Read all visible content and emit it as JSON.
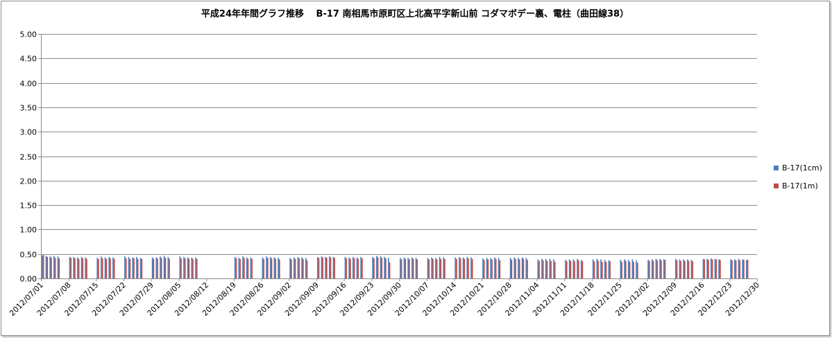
{
  "chart_data": {
    "type": "bar",
    "title": "平成24年年間グラフ推移　 B-17 南相馬市原町区上北高平字新山前 コダマボデー裏、電柱（曲田線38）",
    "ylim": [
      0,
      5
    ],
    "yticks": [
      "0.00",
      "0.50",
      "1.00",
      "1.50",
      "2.00",
      "2.50",
      "3.00",
      "3.50",
      "4.00",
      "4.50",
      "5.00"
    ],
    "xtick_labels": [
      "2012/07/01",
      "2012/07/08",
      "2012/07/15",
      "2012/07/22",
      "2012/07/29",
      "2012/08/05",
      "2012/08/12",
      "2012/08/19",
      "2012/08/26",
      "2012/09/02",
      "2012/09/09",
      "2012/09/16",
      "2012/09/23",
      "2012/09/30",
      "2012/10/07",
      "2012/10/14",
      "2012/10/21",
      "2012/10/28",
      "2012/11/04",
      "2012/11/11",
      "2012/11/18",
      "2012/11/25",
      "2012/12/02",
      "2012/12/09",
      "2012/12/16",
      "2012/12/23",
      "2012/12/30"
    ],
    "grid": true,
    "legend_position": "right",
    "series": [
      {
        "name": "B-17(1cm)",
        "color": "#4a7ebb",
        "values": [
          0.47,
          0.46,
          0.45,
          0.46,
          0.45,
          null,
          null,
          0.44,
          0.44,
          0.43,
          0.44,
          0.43,
          null,
          null,
          0.42,
          0.45,
          0.43,
          0.44,
          0.43,
          null,
          null,
          0.45,
          0.44,
          0.43,
          0.44,
          0.42,
          null,
          null,
          0.43,
          0.43,
          0.45,
          0.46,
          0.44,
          null,
          null,
          0.45,
          0.44,
          0.43,
          0.43,
          0.43,
          null,
          null,
          null,
          null,
          null,
          null,
          null,
          null,
          null,
          0.44,
          0.42,
          0.45,
          0.43,
          0.43,
          null,
          null,
          0.43,
          0.45,
          0.44,
          0.43,
          0.42,
          null,
          null,
          0.42,
          0.43,
          0.44,
          0.43,
          0.42,
          null,
          null,
          0.44,
          0.45,
          0.44,
          0.45,
          0.44,
          null,
          null,
          0.44,
          0.43,
          0.44,
          0.43,
          0.44,
          null,
          null,
          0.44,
          0.46,
          0.45,
          0.44,
          0.42,
          null,
          null,
          0.42,
          0.43,
          0.42,
          0.43,
          0.42,
          null,
          null,
          0.42,
          0.43,
          0.42,
          0.44,
          0.43,
          null,
          null,
          0.43,
          0.44,
          0.43,
          0.44,
          0.43,
          null,
          null,
          0.41,
          0.42,
          0.42,
          0.43,
          0.42,
          null,
          null,
          0.42,
          0.43,
          0.42,
          0.43,
          0.42,
          null,
          null,
          0.39,
          0.4,
          0.4,
          0.4,
          0.39,
          null,
          null,
          0.38,
          0.39,
          0.39,
          0.4,
          0.38,
          null,
          null,
          0.39,
          0.4,
          0.39,
          0.38,
          0.37,
          null,
          null,
          0.38,
          0.39,
          0.38,
          0.39,
          0.37,
          null,
          null,
          0.38,
          0.39,
          0.4,
          0.4,
          0.39,
          null,
          null,
          0.4,
          0.39,
          0.39,
          0.39,
          0.38,
          null,
          null,
          0.4,
          0.4,
          0.41,
          0.4,
          0.39,
          null,
          null,
          0.39,
          0.39,
          0.4,
          0.39,
          0.38,
          null,
          null
        ]
      },
      {
        "name": "B-17(1m)",
        "color": "#be4b48",
        "values": [
          0.48,
          0.44,
          0.43,
          0.42,
          0.41,
          null,
          null,
          0.42,
          0.41,
          0.4,
          0.41,
          0.4,
          null,
          null,
          0.4,
          0.41,
          0.4,
          0.41,
          0.4,
          null,
          null,
          0.41,
          0.4,
          0.41,
          0.4,
          0.4,
          null,
          null,
          0.4,
          0.41,
          0.42,
          0.42,
          0.4,
          null,
          null,
          0.41,
          0.41,
          0.4,
          0.4,
          0.4,
          null,
          null,
          null,
          null,
          null,
          null,
          null,
          null,
          null,
          0.41,
          0.4,
          0.42,
          0.4,
          0.4,
          null,
          null,
          0.4,
          0.42,
          0.41,
          0.4,
          0.39,
          null,
          null,
          0.39,
          0.4,
          0.41,
          0.4,
          0.37,
          null,
          null,
          0.42,
          0.43,
          0.42,
          0.43,
          0.42,
          null,
          null,
          0.41,
          0.4,
          0.41,
          0.4,
          0.41,
          null,
          null,
          0.41,
          0.43,
          0.42,
          0.41,
          0.33,
          null,
          null,
          0.39,
          0.4,
          0.39,
          0.4,
          0.39,
          null,
          null,
          0.39,
          0.4,
          0.39,
          0.4,
          0.4,
          null,
          null,
          0.4,
          0.41,
          0.4,
          0.41,
          0.4,
          null,
          null,
          0.38,
          0.39,
          0.39,
          0.4,
          0.37,
          null,
          null,
          0.38,
          0.4,
          0.39,
          0.4,
          0.38,
          null,
          null,
          0.36,
          0.37,
          0.36,
          0.36,
          0.34,
          null,
          null,
          0.35,
          0.36,
          0.35,
          0.37,
          0.35,
          null,
          null,
          0.35,
          0.36,
          0.34,
          0.34,
          0.35,
          null,
          null,
          0.34,
          0.36,
          0.34,
          0.34,
          0.32,
          null,
          null,
          0.36,
          0.36,
          0.37,
          0.37,
          0.38,
          null,
          null,
          0.37,
          0.36,
          0.36,
          0.36,
          0.35,
          null,
          null,
          0.39,
          0.38,
          0.39,
          0.39,
          0.38,
          null,
          null,
          0.37,
          0.37,
          0.37,
          0.38,
          0.38,
          null,
          null
        ]
      }
    ]
  }
}
